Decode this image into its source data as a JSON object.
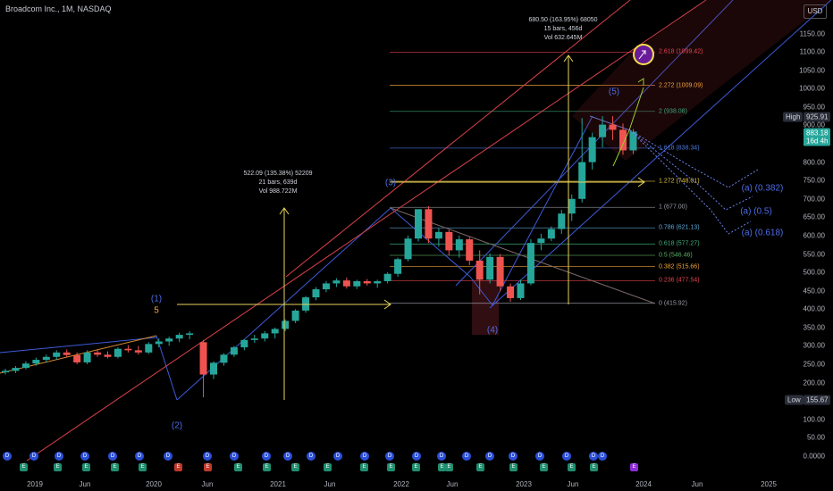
{
  "header": {
    "title": "Broadcom Inc., 1M, NASDAQ",
    "currency": "USD"
  },
  "y_axis": {
    "ticks": [
      "1150.00",
      "1100.00",
      "1050.00",
      "1000.00",
      "950.00",
      "900.00",
      "850.00",
      "800.00",
      "750.00",
      "700.00",
      "650.00",
      "600.00",
      "550.00",
      "500.00",
      "450.00",
      "400.00",
      "350.00",
      "300.00",
      "250.00",
      "200.00",
      "150.00",
      "100.00",
      "50.00",
      "0.0000"
    ]
  },
  "x_axis": {
    "labels": [
      "2019",
      "Jun",
      "2020",
      "Jun",
      "2021",
      "Jun",
      "2022",
      "Jun",
      "2023",
      "Jun",
      "2024",
      "Jun",
      "2025"
    ]
  },
  "tags": {
    "high_label": "High",
    "high_value": "925.91",
    "price": "883.18",
    "countdown": "16d 4h",
    "low_label": "Low",
    "low_value": "155.67"
  },
  "measure_1": {
    "line1": "522.09 (135.38%) 52209",
    "line2": "21 bars, 639d",
    "line3": "Vol 988.722M"
  },
  "measure_2": {
    "line1": "680.50 (163.95%) 68050",
    "line2": "15 bars, 456d",
    "line3": "Vol 632.645M"
  },
  "fib_levels": [
    {
      "label": "2.618 (1099.42)",
      "value": 1099.42,
      "color": "#e8434d"
    },
    {
      "label": "2.272 (1009.09)",
      "value": 1009.09,
      "color": "#f2a33a"
    },
    {
      "label": "2 (938.08)",
      "value": 938.08,
      "color": "#3fa57a"
    },
    {
      "label": "1.618 (838.34)",
      "value": 838.34,
      "color": "#4d7be6"
    },
    {
      "label": "1.272 (748.01)",
      "value": 748.01,
      "color": "#e3c341"
    },
    {
      "label": "1 (677.00)",
      "value": 677.0,
      "color": "#9a9da6"
    },
    {
      "label": "0.786 (621.13)",
      "value": 621.13,
      "color": "#5fa8d8"
    },
    {
      "label": "0.618 (577.27)",
      "value": 577.27,
      "color": "#3fb27f"
    },
    {
      "label": "0.5 (546.46)",
      "value": 546.46,
      "color": "#5db36a"
    },
    {
      "label": "0.382 (515.66)",
      "value": 515.66,
      "color": "#f2a33a"
    },
    {
      "label": "0.236 (477.54)",
      "value": 477.54,
      "color": "#e8434d"
    },
    {
      "label": "0 (415.92)",
      "value": 415.92,
      "color": "#9a9da6"
    }
  ],
  "waves": {
    "w1": "(1)",
    "w1b": "5",
    "w2": "(2)",
    "w3": "(3)",
    "w4": "(4)",
    "w5": "(5)",
    "a382": "(a) (0.382)",
    "a50": "(a) (0.5)",
    "a618": "(a) (0.618)"
  },
  "event_badges": {
    "dividend": "D",
    "earnings": "E"
  },
  "colors": {
    "up": "#26a69a",
    "down": "#ef5350",
    "channel": "#3d5bd9",
    "trend": "#d8404a",
    "measure": "#e9d35a",
    "fib_fill": "#7a1f24"
  },
  "chart_data": {
    "type": "candlestick",
    "title": "Broadcom Inc., 1M, NASDAQ",
    "ylim": [
      0,
      1200
    ],
    "y_scale": "linear",
    "grid": false,
    "candles": [
      [
        228,
        238,
        222,
        232
      ],
      [
        232,
        245,
        226,
        240
      ],
      [
        240,
        258,
        236,
        252
      ],
      [
        252,
        268,
        246,
        262
      ],
      [
        262,
        276,
        254,
        270
      ],
      [
        270,
        288,
        262,
        282
      ],
      [
        282,
        290,
        268,
        275
      ],
      [
        275,
        282,
        250,
        255
      ],
      [
        255,
        288,
        250,
        282
      ],
      [
        282,
        290,
        270,
        276
      ],
      [
        276,
        285,
        266,
        270
      ],
      [
        270,
        296,
        266,
        292
      ],
      [
        292,
        302,
        282,
        288
      ],
      [
        288,
        300,
        276,
        282
      ],
      [
        282,
        310,
        278,
        305
      ],
      [
        305,
        320,
        296,
        312
      ],
      [
        312,
        325,
        300,
        320
      ],
      [
        320,
        336,
        310,
        330
      ],
      [
        330,
        340,
        318,
        334
      ],
      [
        310,
        316,
        160,
        222
      ],
      [
        222,
        258,
        210,
        254
      ],
      [
        254,
        280,
        246,
        276
      ],
      [
        276,
        300,
        270,
        296
      ],
      [
        296,
        318,
        288,
        316
      ],
      [
        316,
        330,
        308,
        320
      ],
      [
        320,
        340,
        312,
        334
      ],
      [
        334,
        350,
        320,
        346
      ],
      [
        346,
        372,
        340,
        368
      ],
      [
        368,
        400,
        362,
        396
      ],
      [
        396,
        436,
        390,
        432
      ],
      [
        432,
        460,
        424,
        454
      ],
      [
        454,
        476,
        446,
        470
      ],
      [
        470,
        484,
        460,
        478
      ],
      [
        478,
        486,
        456,
        462
      ],
      [
        462,
        480,
        455,
        476
      ],
      [
        476,
        482,
        464,
        470
      ],
      [
        470,
        480,
        458,
        476
      ],
      [
        476,
        500,
        470,
        496
      ],
      [
        496,
        540,
        488,
        536
      ],
      [
        536,
        600,
        530,
        592
      ],
      [
        592,
        660,
        584,
        672
      ],
      [
        672,
        680,
        580,
        592
      ],
      [
        592,
        620,
        570,
        610
      ],
      [
        610,
        616,
        546,
        560
      ],
      [
        560,
        600,
        540,
        590
      ],
      [
        590,
        596,
        520,
        532
      ],
      [
        532,
        560,
        440,
        480
      ],
      [
        480,
        552,
        470,
        542
      ],
      [
        542,
        550,
        448,
        462
      ],
      [
        462,
        470,
        420,
        430
      ],
      [
        430,
        480,
        425,
        470
      ],
      [
        470,
        590,
        465,
        580
      ],
      [
        580,
        605,
        560,
        592
      ],
      [
        592,
        625,
        585,
        618
      ],
      [
        618,
        670,
        605,
        660
      ],
      [
        660,
        712,
        640,
        700
      ],
      [
        700,
        920,
        690,
        800
      ],
      [
        800,
        880,
        780,
        868
      ],
      [
        868,
        925,
        840,
        902
      ],
      [
        902,
        925,
        860,
        888
      ],
      [
        888,
        905,
        820,
        832
      ],
      [
        832,
        890,
        822,
        883
      ]
    ],
    "x_axis_labels": [
      "2019",
      "Jun",
      "2020",
      "Jun",
      "2021",
      "Jun",
      "2022",
      "Jun",
      "2023",
      "Jun",
      "2024",
      "Jun",
      "2025"
    ],
    "fib_levels": [
      1099.42,
      1009.09,
      938.08,
      838.34,
      748.01,
      677.0,
      621.13,
      577.27,
      546.46,
      515.66,
      477.54,
      415.92
    ],
    "high": 925.91,
    "low": 155.67,
    "last": 883.18
  }
}
